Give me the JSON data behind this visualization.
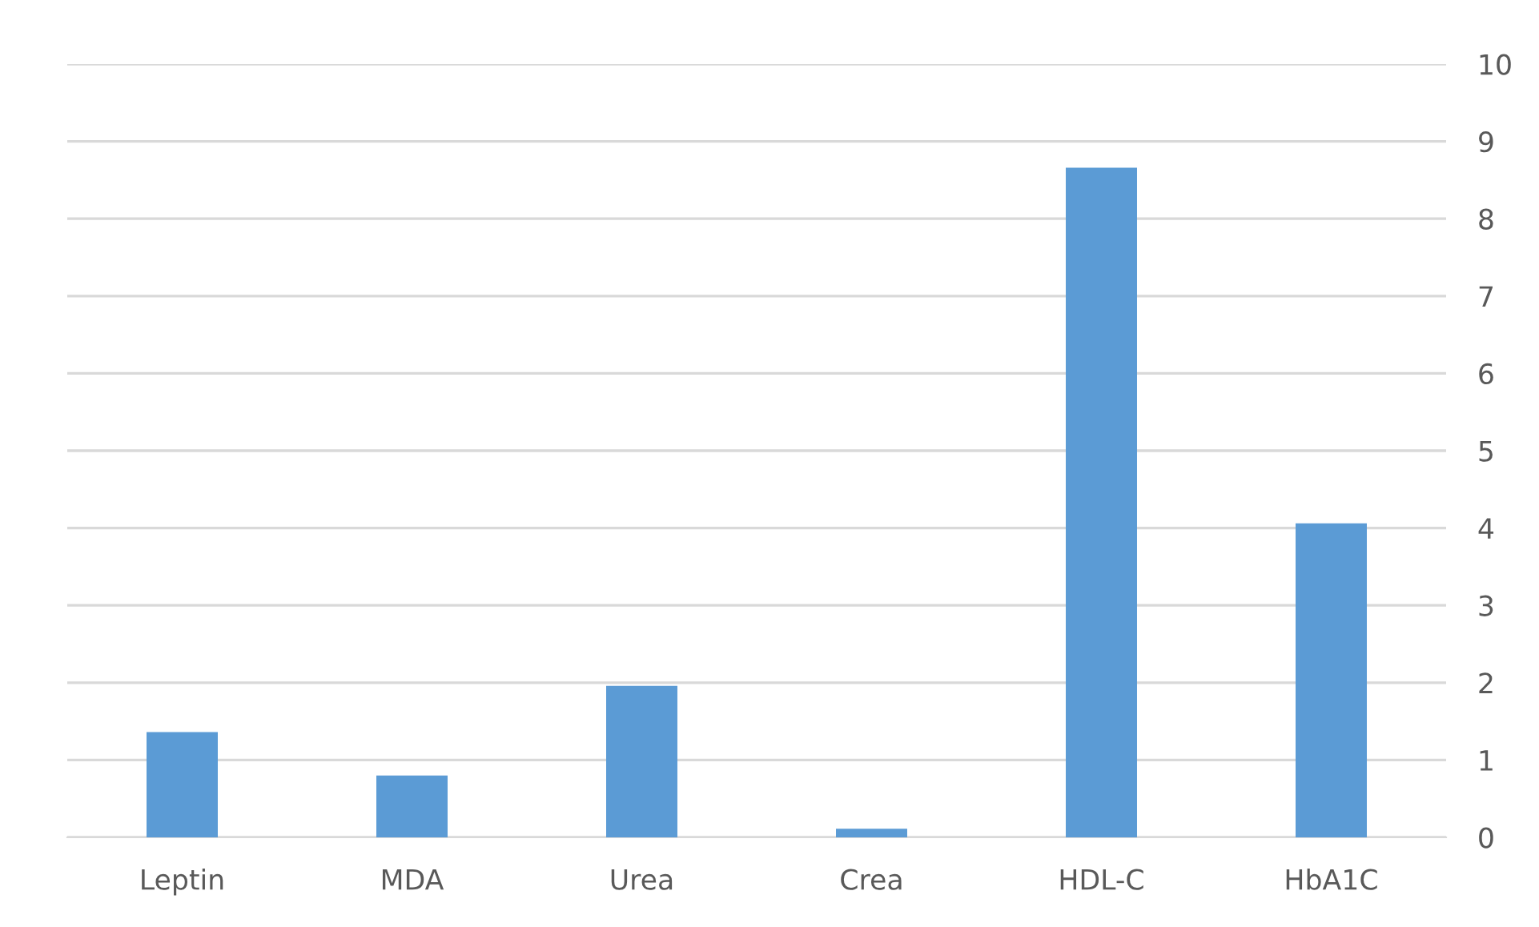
{
  "chart_data": {
    "type": "bar",
    "categories": [
      "Leptin",
      "MDA",
      "Urea",
      "Crea",
      "HDL-C",
      "HbA1C"
    ],
    "values": [
      1.36,
      0.8,
      1.96,
      0.11,
      8.66,
      4.06
    ],
    "color": "#5b9bd5",
    "ylim": [
      0,
      10
    ],
    "yticks": [
      0,
      1,
      2,
      3,
      4,
      5,
      6,
      7,
      8,
      9,
      10
    ],
    "grid": "y",
    "legend": false
  }
}
